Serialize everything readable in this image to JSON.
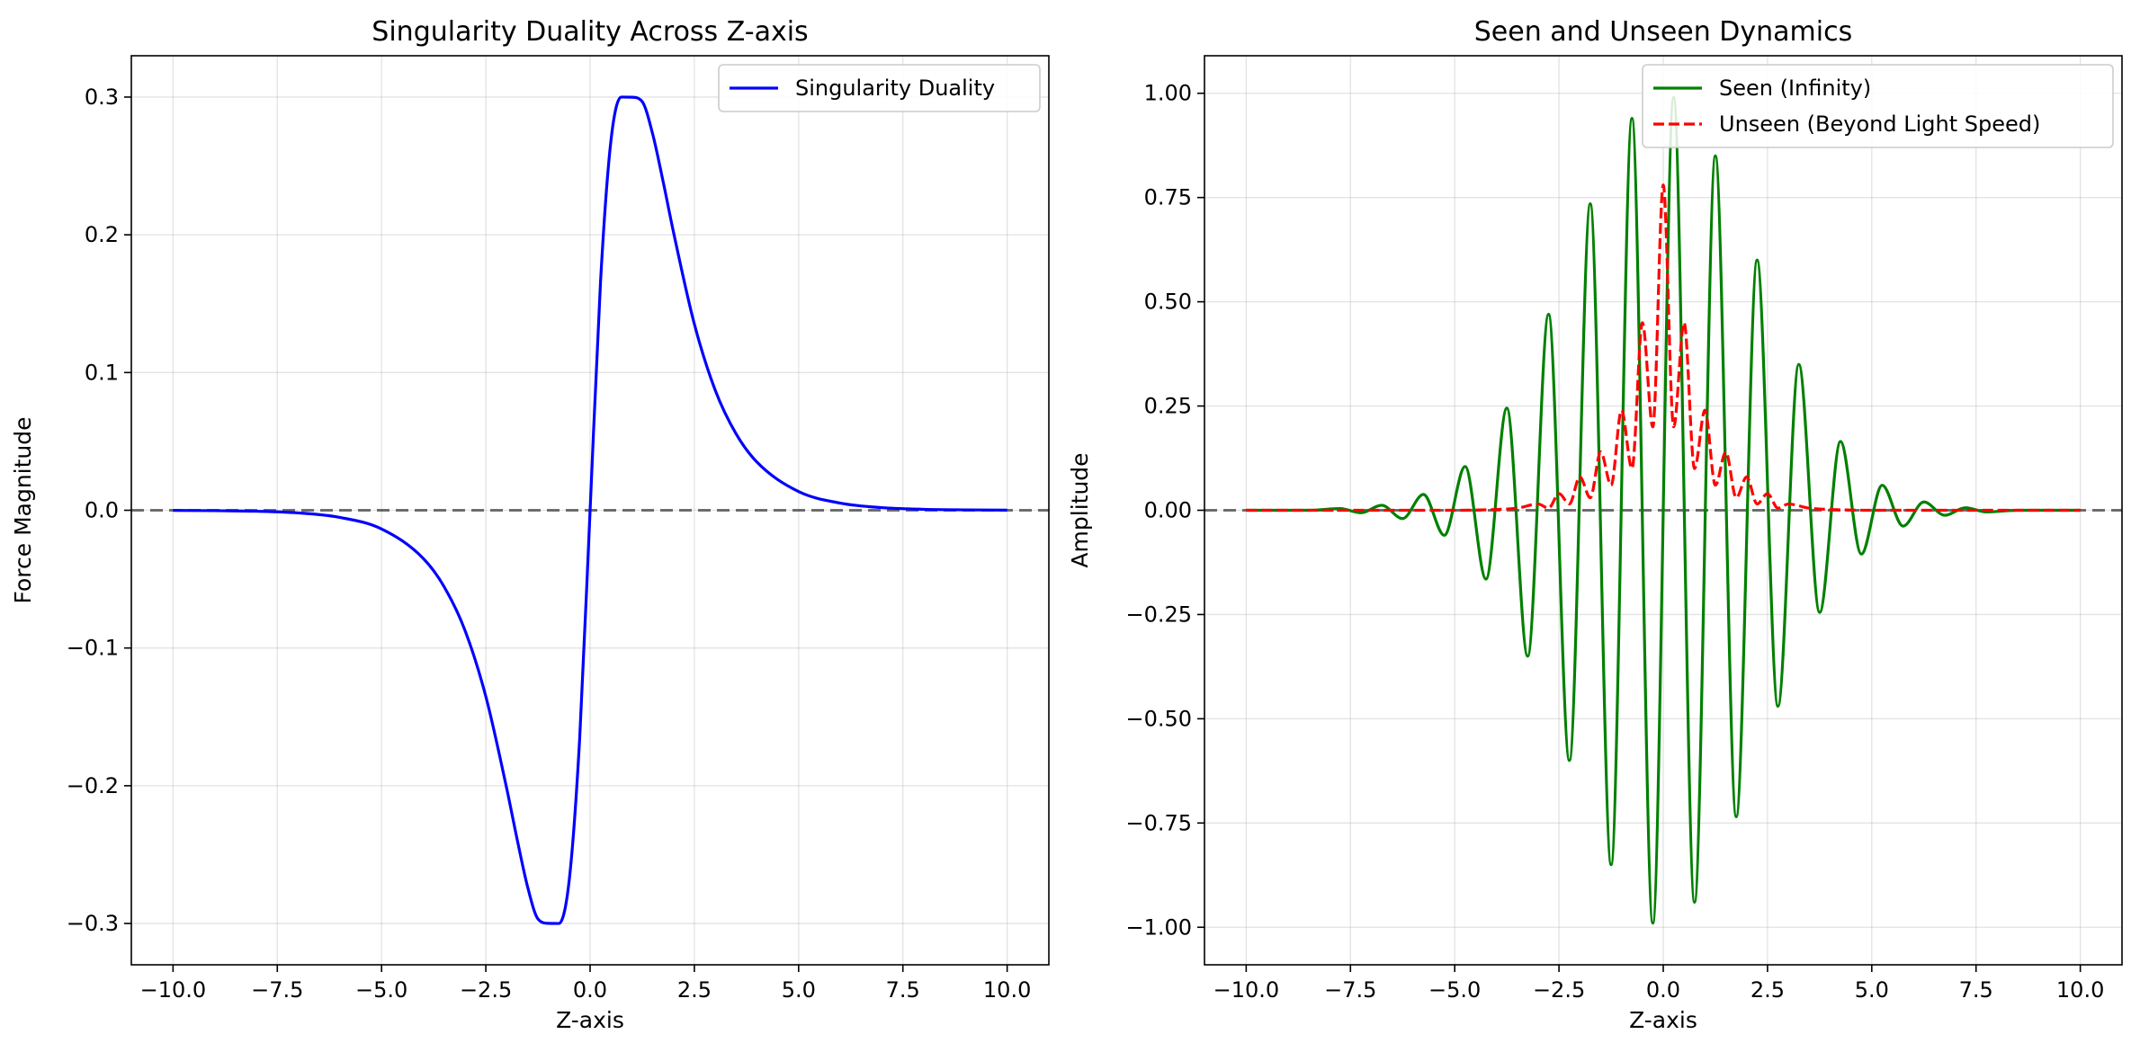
{
  "chart_data": [
    {
      "type": "line",
      "title": "Singularity Duality Across Z-axis",
      "xlabel": "Z-axis",
      "ylabel": "Force Magnitude",
      "xlim": [
        -11,
        11
      ],
      "ylim": [
        -0.33,
        0.33
      ],
      "xticks": [
        -10,
        -7.5,
        -5,
        -2.5,
        0,
        2.5,
        5,
        7.5,
        10
      ],
      "xtick_labels": [
        "−10.0",
        "−7.5",
        "−5.0",
        "−2.5",
        "0.0",
        "2.5",
        "5.0",
        "7.5",
        "10.0"
      ],
      "yticks": [
        -0.3,
        -0.2,
        -0.1,
        0,
        0.1,
        0.2,
        0.3
      ],
      "ytick_labels": [
        "−0.3",
        "−0.2",
        "−0.1",
        "0.0",
        "0.1",
        "0.2",
        "0.3"
      ],
      "grid": true,
      "legend": "top-right",
      "reference_line_y": 0,
      "series": [
        {
          "name": "Singularity Duality",
          "color": "#0000ff",
          "style": "solid",
          "x": [
            -10,
            -9,
            -8,
            -7,
            -6,
            -5,
            -4,
            -3.5,
            -3,
            -2.5,
            -2,
            -1.75,
            -1.5,
            -1.25,
            -1,
            -0.75,
            -0.5,
            -0.25,
            0,
            0.25,
            0.5,
            0.75,
            1,
            1.25,
            1.5,
            1.75,
            2,
            2.5,
            3,
            3.5,
            4,
            5,
            6,
            7,
            8,
            9,
            10
          ],
          "y": [
            -0.0001,
            -0.0003,
            -0.0007,
            -0.0019,
            -0.0052,
            -0.0136,
            -0.035,
            -0.0555,
            -0.0872,
            -0.1352,
            -0.2019,
            -0.2388,
            -0.2732,
            -0.2967,
            -0.2999,
            -0.3,
            -0.2684,
            -0.1658,
            0,
            0.1658,
            0.2684,
            0.3,
            0.2999,
            0.2967,
            0.2732,
            0.2388,
            0.2019,
            0.1352,
            0.0872,
            0.0555,
            0.035,
            0.0136,
            0.0052,
            0.0019,
            0.0007,
            0.0003,
            0.0001
          ]
        }
      ]
    },
    {
      "type": "line",
      "title": "Seen and Unseen Dynamics",
      "xlabel": "Z-axis",
      "ylabel": "Amplitude",
      "xlim": [
        -11,
        11
      ],
      "ylim": [
        -1.09,
        1.09
      ],
      "xticks": [
        -10,
        -7.5,
        -5,
        -2.5,
        0,
        2.5,
        5,
        7.5,
        10
      ],
      "xtick_labels": [
        "−10.0",
        "−7.5",
        "−5.0",
        "−2.5",
        "0.0",
        "2.5",
        "5.0",
        "7.5",
        "10.0"
      ],
      "yticks": [
        -1,
        -0.75,
        -0.5,
        -0.25,
        0,
        0.25,
        0.5,
        0.75,
        1
      ],
      "ytick_labels": [
        "−1.00",
        "−0.75",
        "−0.50",
        "−0.25",
        "0.00",
        "0.25",
        "0.50",
        "0.75",
        "1.00"
      ],
      "grid": true,
      "legend": "top-right",
      "reference_line_y": 0,
      "series": [
        {
          "name": "Seen (Infinity)",
          "color": "#008000",
          "style": "solid",
          "x": [
            -10,
            -8.5,
            -7.75,
            -7.25,
            -6.75,
            -6.25,
            -5.75,
            -5.25,
            -4.75,
            -4.25,
            -3.75,
            -3.25,
            -2.75,
            -2.25,
            -1.75,
            -1.25,
            -0.75,
            -0.25,
            0.25,
            0.75,
            1.25,
            1.75,
            2.25,
            2.75,
            3.25,
            3.75,
            4.25,
            4.75,
            5.25,
            5.75,
            6.25,
            6.75,
            7.25,
            7.75,
            8.5,
            10
          ],
          "y": [
            0,
            0,
            0.004,
            -0.006,
            0.012,
            -0.02,
            0.038,
            -0.06,
            0.105,
            -0.165,
            0.245,
            -0.35,
            0.47,
            -0.6,
            0.735,
            -0.85,
            0.94,
            -0.99,
            0.99,
            -0.94,
            0.85,
            -0.735,
            0.6,
            -0.47,
            0.35,
            -0.245,
            0.165,
            -0.105,
            0.06,
            -0.038,
            0.02,
            -0.012,
            0.006,
            -0.004,
            0,
            0
          ]
        },
        {
          "name": "Unseen (Beyond Light Speed)",
          "color": "#ff0000",
          "style": "dashed",
          "x": [
            -10,
            -5,
            -4,
            -3.5,
            -3,
            -2.75,
            -2.5,
            -2.25,
            -2,
            -1.75,
            -1.5,
            -1.25,
            -1,
            -0.75,
            -0.5,
            -0.25,
            0,
            0.25,
            0.5,
            0.75,
            1,
            1.25,
            1.5,
            1.75,
            2,
            2.25,
            2.5,
            2.75,
            3,
            3.5,
            4,
            5,
            10
          ],
          "y": [
            0,
            0,
            0.002,
            0.005,
            0.015,
            0.005,
            0.04,
            0.015,
            0.08,
            0.03,
            0.14,
            0.06,
            0.24,
            0.1,
            0.45,
            0.2,
            0.78,
            0.2,
            0.45,
            0.1,
            0.24,
            0.06,
            0.14,
            0.03,
            0.08,
            0.015,
            0.04,
            0.005,
            0.015,
            0.005,
            0.002,
            0,
            0
          ]
        }
      ]
    }
  ]
}
